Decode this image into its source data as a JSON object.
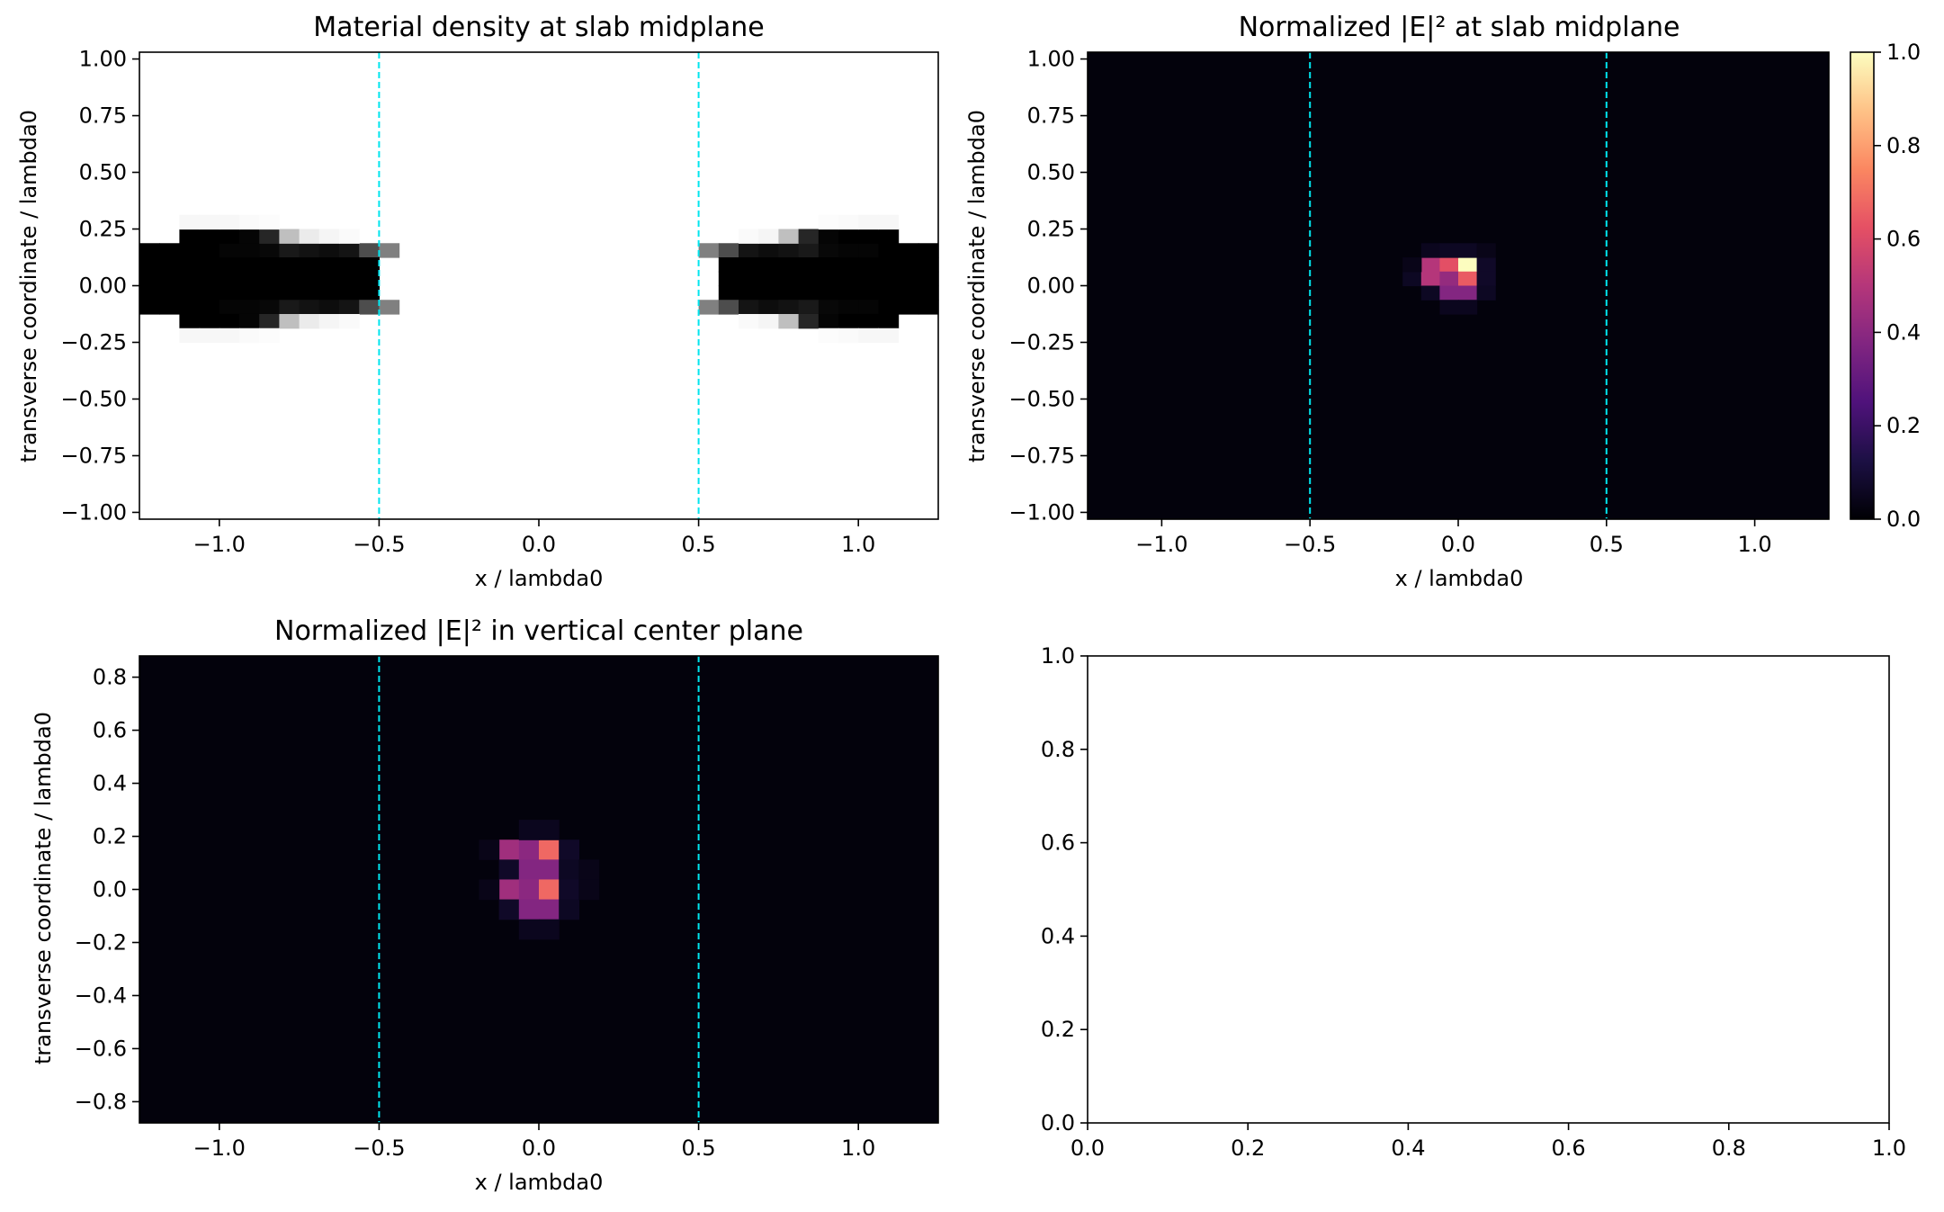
{
  "charts": [
    {
      "id": "density",
      "type": "heatmap",
      "title": "Material density at slab midplane",
      "xlabel": "x / lambda0",
      "ylabel": "transverse coordinate / lambda0",
      "xlim": [
        -1.25,
        1.25
      ],
      "ylim": [
        -1.03,
        1.03
      ],
      "xticks": [
        -1.0,
        -0.5,
        0.0,
        0.5,
        1.0
      ],
      "xtick_labels": [
        "−1.0",
        "−0.5",
        "0.0",
        "0.5",
        "1.0"
      ],
      "yticks": [
        1.0,
        0.75,
        0.5,
        0.25,
        0.0,
        -0.25,
        -0.5,
        -0.75,
        -1.0
      ],
      "ytick_labels": [
        "1.00",
        "0.75",
        "0.50",
        "0.25",
        "0.00",
        "−0.25",
        "−0.50",
        "−0.75",
        "−1.00"
      ],
      "colormap": "gray_r",
      "background_value": 0.0,
      "vlines": [
        -0.5,
        0.5
      ],
      "vline_color": "#00e5ee",
      "cell_size": [
        0.0625,
        0.0625
      ],
      "cells": [
        [
          -1.25,
          0.125,
          1
        ],
        [
          -1.1875,
          0.125,
          1
        ],
        [
          -1.125,
          0.125,
          1
        ],
        [
          -1.0625,
          0.125,
          1
        ],
        [
          -1.0,
          0.125,
          0.98
        ],
        [
          -0.9375,
          0.125,
          0.98
        ],
        [
          -0.875,
          0.125,
          0.97
        ],
        [
          -0.8125,
          0.125,
          0.9
        ],
        [
          -0.75,
          0.125,
          0.93
        ],
        [
          -0.6875,
          0.125,
          0.95
        ],
        [
          -0.625,
          0.125,
          0.92
        ],
        [
          -0.5625,
          0.125,
          0.7
        ],
        [
          -0.5,
          0.125,
          0.5
        ],
        [
          -1.25,
          0.0625,
          1
        ],
        [
          -1.1875,
          0.0625,
          1
        ],
        [
          -1.125,
          0.0625,
          1
        ],
        [
          -1.0625,
          0.0625,
          1
        ],
        [
          -1.0,
          0.0625,
          1
        ],
        [
          -0.9375,
          0.0625,
          1
        ],
        [
          -0.875,
          0.0625,
          1
        ],
        [
          -0.8125,
          0.0625,
          1
        ],
        [
          -0.75,
          0.0625,
          1
        ],
        [
          -0.6875,
          0.0625,
          1
        ],
        [
          -0.625,
          0.0625,
          1
        ],
        [
          -0.5625,
          0.0625,
          1
        ],
        [
          -1.25,
          0.0,
          1
        ],
        [
          -1.1875,
          0.0,
          1
        ],
        [
          -1.125,
          0.0,
          1
        ],
        [
          -1.0625,
          0.0,
          1
        ],
        [
          -1.0,
          0.0,
          1
        ],
        [
          -0.9375,
          0.0,
          1
        ],
        [
          -0.875,
          0.0,
          1
        ],
        [
          -0.8125,
          0.0,
          1
        ],
        [
          -0.75,
          0.0,
          1
        ],
        [
          -0.6875,
          0.0,
          1
        ],
        [
          -0.625,
          0.0,
          1
        ],
        [
          -0.5625,
          0.0,
          1
        ],
        [
          -1.25,
          -0.0625,
          1
        ],
        [
          -1.1875,
          -0.0625,
          1
        ],
        [
          -1.125,
          -0.0625,
          1
        ],
        [
          -1.0625,
          -0.0625,
          1
        ],
        [
          -1.0,
          -0.0625,
          1
        ],
        [
          -0.9375,
          -0.0625,
          1
        ],
        [
          -0.875,
          -0.0625,
          1
        ],
        [
          -0.8125,
          -0.0625,
          1
        ],
        [
          -0.75,
          -0.0625,
          1
        ],
        [
          -0.6875,
          -0.0625,
          1
        ],
        [
          -0.625,
          -0.0625,
          1
        ],
        [
          -0.5625,
          -0.0625,
          1
        ],
        [
          -1.25,
          -0.125,
          1
        ],
        [
          -1.1875,
          -0.125,
          1
        ],
        [
          -1.125,
          -0.125,
          1
        ],
        [
          -1.0625,
          -0.125,
          1
        ],
        [
          -1.0,
          -0.125,
          0.98
        ],
        [
          -0.9375,
          -0.125,
          0.98
        ],
        [
          -0.875,
          -0.125,
          0.97
        ],
        [
          -0.8125,
          -0.125,
          0.9
        ],
        [
          -0.75,
          -0.125,
          0.93
        ],
        [
          -0.6875,
          -0.125,
          0.95
        ],
        [
          -0.625,
          -0.125,
          0.92
        ],
        [
          -0.5625,
          -0.125,
          0.7
        ],
        [
          -0.5,
          -0.125,
          0.5
        ],
        [
          -1.125,
          0.1875,
          1
        ],
        [
          -1.0625,
          0.1875,
          1
        ],
        [
          -1.0,
          0.1875,
          1
        ],
        [
          -0.9375,
          0.1875,
          0.98
        ],
        [
          -0.875,
          0.1875,
          0.85
        ],
        [
          -0.8125,
          0.1875,
          0.25
        ],
        [
          -0.75,
          0.1875,
          0.08
        ],
        [
          -0.6875,
          0.1875,
          0.04
        ],
        [
          -0.625,
          0.1875,
          0.02
        ],
        [
          -1.125,
          -0.1875,
          1
        ],
        [
          -1.0625,
          -0.1875,
          1
        ],
        [
          -1.0,
          -0.1875,
          1
        ],
        [
          -0.9375,
          -0.1875,
          0.98
        ],
        [
          -0.875,
          -0.1875,
          0.85
        ],
        [
          -0.8125,
          -0.1875,
          0.25
        ],
        [
          -0.75,
          -0.1875,
          0.08
        ],
        [
          -0.6875,
          -0.1875,
          0.04
        ],
        [
          -0.625,
          -0.1875,
          0.02
        ],
        [
          -1.125,
          0.25,
          0.03
        ],
        [
          -1.0625,
          0.25,
          0.03
        ],
        [
          -1.0,
          0.25,
          0.03
        ],
        [
          -0.9375,
          0.25,
          0.02
        ],
        [
          -0.875,
          0.25,
          0.01
        ],
        [
          -1.125,
          -0.25,
          0.03
        ],
        [
          -1.0625,
          -0.25,
          0.03
        ],
        [
          -1.0,
          -0.25,
          0.03
        ],
        [
          -0.9375,
          -0.25,
          0.02
        ],
        [
          -0.875,
          -0.25,
          0.01
        ],
        [
          0.5,
          0.125,
          0.5
        ],
        [
          0.5625,
          0.125,
          0.7
        ],
        [
          0.625,
          0.125,
          0.92
        ],
        [
          0.6875,
          0.125,
          0.95
        ],
        [
          0.75,
          0.125,
          0.93
        ],
        [
          0.8125,
          0.125,
          0.9
        ],
        [
          0.875,
          0.125,
          0.97
        ],
        [
          0.9375,
          0.125,
          0.98
        ],
        [
          1.0,
          0.125,
          0.98
        ],
        [
          1.0625,
          0.125,
          1
        ],
        [
          1.125,
          0.125,
          1
        ],
        [
          1.1875,
          0.125,
          1
        ],
        [
          0.5625,
          0.0625,
          1
        ],
        [
          0.625,
          0.0625,
          1
        ],
        [
          0.6875,
          0.0625,
          1
        ],
        [
          0.75,
          0.0625,
          1
        ],
        [
          0.8125,
          0.0625,
          1
        ],
        [
          0.875,
          0.0625,
          1
        ],
        [
          0.9375,
          0.0625,
          1
        ],
        [
          1.0,
          0.0625,
          1
        ],
        [
          1.0625,
          0.0625,
          1
        ],
        [
          1.125,
          0.0625,
          1
        ],
        [
          1.1875,
          0.0625,
          1
        ],
        [
          0.5625,
          0.0,
          1
        ],
        [
          0.625,
          0.0,
          1
        ],
        [
          0.6875,
          0.0,
          1
        ],
        [
          0.75,
          0.0,
          1
        ],
        [
          0.8125,
          0.0,
          1
        ],
        [
          0.875,
          0.0,
          1
        ],
        [
          0.9375,
          0.0,
          1
        ],
        [
          1.0,
          0.0,
          1
        ],
        [
          1.0625,
          0.0,
          1
        ],
        [
          1.125,
          0.0,
          1
        ],
        [
          1.1875,
          0.0,
          1
        ],
        [
          0.5625,
          -0.0625,
          1
        ],
        [
          0.625,
          -0.0625,
          1
        ],
        [
          0.6875,
          -0.0625,
          1
        ],
        [
          0.75,
          -0.0625,
          1
        ],
        [
          0.8125,
          -0.0625,
          1
        ],
        [
          0.875,
          -0.0625,
          1
        ],
        [
          0.9375,
          -0.0625,
          1
        ],
        [
          1.0,
          -0.0625,
          1
        ],
        [
          1.0625,
          -0.0625,
          1
        ],
        [
          1.125,
          -0.0625,
          1
        ],
        [
          1.1875,
          -0.0625,
          1
        ],
        [
          0.5,
          -0.125,
          0.5
        ],
        [
          0.5625,
          -0.125,
          0.7
        ],
        [
          0.625,
          -0.125,
          0.92
        ],
        [
          0.6875,
          -0.125,
          0.95
        ],
        [
          0.75,
          -0.125,
          0.93
        ],
        [
          0.8125,
          -0.125,
          0.9
        ],
        [
          0.875,
          -0.125,
          0.97
        ],
        [
          0.9375,
          -0.125,
          0.98
        ],
        [
          1.0,
          -0.125,
          0.98
        ],
        [
          1.0625,
          -0.125,
          1
        ],
        [
          1.125,
          -0.125,
          1
        ],
        [
          1.1875,
          -0.125,
          1
        ],
        [
          0.625,
          0.1875,
          0.02
        ],
        [
          0.6875,
          0.1875,
          0.04
        ],
        [
          0.75,
          0.1875,
          0.25
        ],
        [
          0.8125,
          0.1875,
          0.85
        ],
        [
          0.875,
          0.1875,
          0.98
        ],
        [
          0.9375,
          0.1875,
          1
        ],
        [
          1.0,
          0.1875,
          1
        ],
        [
          1.0625,
          0.1875,
          1
        ],
        [
          0.625,
          -0.1875,
          0.02
        ],
        [
          0.6875,
          -0.1875,
          0.04
        ],
        [
          0.75,
          -0.1875,
          0.25
        ],
        [
          0.8125,
          -0.1875,
          0.85
        ],
        [
          0.875,
          -0.1875,
          0.98
        ],
        [
          0.9375,
          -0.1875,
          1
        ],
        [
          1.0,
          -0.1875,
          1
        ],
        [
          1.0625,
          -0.1875,
          1
        ],
        [
          0.875,
          0.25,
          0.01
        ],
        [
          0.9375,
          0.25,
          0.02
        ],
        [
          1.0,
          0.25,
          0.03
        ],
        [
          1.0625,
          0.25,
          0.03
        ],
        [
          0.875,
          -0.25,
          0.01
        ],
        [
          0.9375,
          -0.25,
          0.02
        ],
        [
          1.0,
          -0.25,
          0.03
        ],
        [
          1.0625,
          -0.25,
          0.03
        ]
      ]
    },
    {
      "id": "field_mid",
      "type": "heatmap",
      "title": "Normalized |E|² at slab midplane",
      "xlabel": "x / lambda0",
      "ylabel": "transverse coordinate / lambda0",
      "xlim": [
        -1.25,
        1.25
      ],
      "ylim": [
        -1.03,
        1.03
      ],
      "xticks": [
        -1.0,
        -0.5,
        0.0,
        0.5,
        1.0
      ],
      "xtick_labels": [
        "−1.0",
        "−0.5",
        "0.0",
        "0.5",
        "1.0"
      ],
      "yticks": [
        1.0,
        0.75,
        0.5,
        0.25,
        0.0,
        -0.25,
        -0.5,
        -0.75,
        -1.0
      ],
      "ytick_labels": [
        "1.00",
        "0.75",
        "0.50",
        "0.25",
        "0.00",
        "−0.25",
        "−0.50",
        "−0.75",
        "−1.00"
      ],
      "colormap": "magma",
      "background_value": 0.015,
      "vlines": [
        -0.5,
        0.5
      ],
      "vline_color": "#00e5ee",
      "colorbar": {
        "range": [
          0.0,
          1.0
        ],
        "ticks": [
          0.0,
          0.2,
          0.4,
          0.6,
          0.8,
          1.0
        ],
        "tick_labels": [
          "0.0",
          "0.2",
          "0.4",
          "0.6",
          "0.8",
          "1.0"
        ]
      },
      "cell_size": [
        0.0625,
        0.0625
      ],
      "cells": [
        [
          -0.125,
          0.0625,
          0.5
        ],
        [
          -0.0625,
          0.0625,
          0.62
        ],
        [
          0.0,
          0.0625,
          1.0
        ],
        [
          0.0625,
          0.0625,
          0.07
        ],
        [
          -0.1875,
          0.0,
          0.06
        ],
        [
          -0.125,
          0.0,
          0.5
        ],
        [
          -0.0625,
          0.0,
          0.42
        ],
        [
          0.0,
          0.0,
          0.65
        ],
        [
          0.0625,
          0.0,
          0.07
        ],
        [
          -0.1875,
          0.0625,
          0.04
        ],
        [
          -0.125,
          0.125,
          0.05
        ],
        [
          -0.0625,
          0.125,
          0.06
        ],
        [
          0.0,
          0.125,
          0.06
        ],
        [
          0.0625,
          0.125,
          0.04
        ],
        [
          -0.125,
          -0.0625,
          0.06
        ],
        [
          -0.0625,
          -0.0625,
          0.38
        ],
        [
          0.0,
          -0.0625,
          0.38
        ],
        [
          0.0625,
          -0.0625,
          0.06
        ],
        [
          -0.0625,
          -0.125,
          0.05
        ],
        [
          0.0,
          -0.125,
          0.05
        ]
      ]
    },
    {
      "id": "field_vert",
      "type": "heatmap",
      "title": "Normalized |E|² in vertical center plane",
      "xlabel": "x / lambda0",
      "ylabel": "transverse coordinate / lambda0",
      "xlim": [
        -1.25,
        1.25
      ],
      "ylim": [
        -0.88,
        0.88
      ],
      "xticks": [
        -1.0,
        -0.5,
        0.0,
        0.5,
        1.0
      ],
      "xtick_labels": [
        "−1.0",
        "−0.5",
        "0.0",
        "0.5",
        "1.0"
      ],
      "yticks": [
        0.8,
        0.6,
        0.4,
        0.2,
        0.0,
        -0.2,
        -0.4,
        -0.6,
        -0.8
      ],
      "ytick_labels": [
        "0.8",
        "0.6",
        "0.4",
        "0.2",
        "0.0",
        "−0.2",
        "−0.4",
        "−0.6",
        "−0.8"
      ],
      "colormap": "magma",
      "background_value": 0.015,
      "vlines": [
        -0.5,
        0.5
      ],
      "vline_color": "#00e5ee",
      "cell_size": [
        0.0625,
        0.075
      ],
      "cells": [
        [
          -0.125,
          0.1125,
          0.45
        ],
        [
          -0.0625,
          0.1125,
          0.4
        ],
        [
          0.0,
          0.1125,
          0.68
        ],
        [
          0.0625,
          0.1125,
          0.07
        ],
        [
          -0.125,
          0.0375,
          0.07
        ],
        [
          -0.0625,
          0.0375,
          0.38
        ],
        [
          0.0,
          0.0375,
          0.38
        ],
        [
          0.0625,
          0.0375,
          0.06
        ],
        [
          -0.125,
          -0.0375,
          0.45
        ],
        [
          -0.0625,
          -0.0375,
          0.4
        ],
        [
          0.0,
          -0.0375,
          0.68
        ],
        [
          0.0625,
          -0.0375,
          0.07
        ],
        [
          -0.125,
          -0.1125,
          0.07
        ],
        [
          -0.0625,
          -0.1125,
          0.38
        ],
        [
          0.0,
          -0.1125,
          0.38
        ],
        [
          0.0625,
          -0.1125,
          0.06
        ],
        [
          -0.1875,
          0.1125,
          0.04
        ],
        [
          -0.1875,
          -0.0375,
          0.04
        ],
        [
          -0.0625,
          0.1875,
          0.05
        ],
        [
          0.0,
          0.1875,
          0.05
        ],
        [
          -0.0625,
          -0.1875,
          0.05
        ],
        [
          0.0,
          -0.1875,
          0.05
        ],
        [
          0.125,
          0.0375,
          0.04
        ],
        [
          0.125,
          -0.0375,
          0.04
        ]
      ]
    },
    {
      "id": "empty",
      "type": "scatter",
      "title": "",
      "xlabel": "",
      "ylabel": "",
      "xlim": [
        0.0,
        1.0
      ],
      "ylim": [
        0.0,
        1.0
      ],
      "xticks": [
        0.0,
        0.2,
        0.4,
        0.6,
        0.8,
        1.0
      ],
      "xtick_labels": [
        "0.0",
        "0.2",
        "0.4",
        "0.6",
        "0.8",
        "1.0"
      ],
      "yticks": [
        0.0,
        0.2,
        0.4,
        0.6,
        0.8,
        1.0
      ],
      "ytick_labels": [
        "0.0",
        "0.2",
        "0.4",
        "0.6",
        "0.8",
        "1.0"
      ]
    }
  ]
}
